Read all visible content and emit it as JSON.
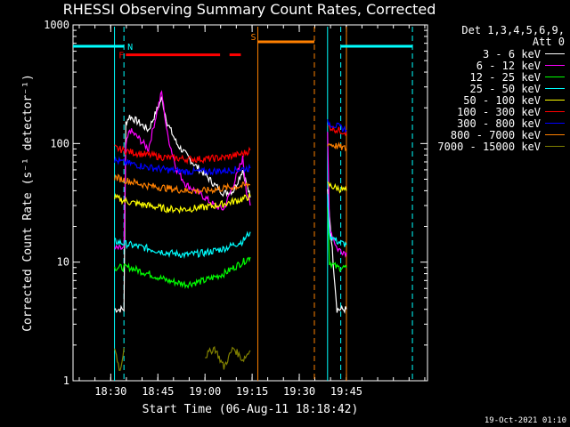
{
  "chart_data": {
    "type": "line",
    "title": "RHESSI Observing Summary Count Rates, Corrected",
    "xlabel": "Start Time (06-Aug-11 18:18:42)",
    "ylabel": "Corrected Count Rate (s⁻¹ detector⁻¹)",
    "y_scale": "log",
    "ylim": [
      1,
      1000
    ],
    "xlim_minutes": [
      18.3,
      20.18
    ],
    "x_ticks": [
      "18:30",
      "18:45",
      "19:00",
      "19:15",
      "19:30",
      "19:45"
    ],
    "y_ticks": [
      "1",
      "10",
      "100",
      "1000"
    ],
    "legend_header": [
      "Det 1,3,4,5,6,9,",
      "Att 0"
    ],
    "legend_position": "right",
    "series": [
      {
        "name": "3 - 6 keV",
        "color": "#ffffff",
        "segments": [
          [
            [
              18.52,
              4
            ],
            [
              18.57,
              4
            ],
            [
              18.58,
              150
            ],
            [
              18.6,
              170
            ],
            [
              18.65,
              150
            ],
            [
              18.7,
              130
            ],
            [
              18.75,
              200
            ],
            [
              18.77,
              240
            ],
            [
              18.8,
              150
            ],
            [
              18.85,
              100
            ],
            [
              18.9,
              80
            ],
            [
              18.95,
              65
            ],
            [
              19.0,
              55
            ],
            [
              19.05,
              45
            ],
            [
              19.1,
              38
            ],
            [
              19.15,
              40
            ],
            [
              19.2,
              60
            ],
            [
              19.24,
              35
            ]
          ],
          [
            [
              19.65,
              40
            ],
            [
              19.7,
              4
            ],
            [
              19.75,
              4
            ]
          ]
        ]
      },
      {
        "name": "6 - 12 keV",
        "color": "#ff00ff",
        "segments": [
          [
            [
              18.52,
              13
            ],
            [
              18.57,
              13
            ],
            [
              18.58,
              95
            ],
            [
              18.6,
              130
            ],
            [
              18.65,
              110
            ],
            [
              18.7,
              90
            ],
            [
              18.75,
              200
            ],
            [
              18.77,
              270
            ],
            [
              18.8,
              120
            ],
            [
              18.85,
              60
            ],
            [
              18.9,
              45
            ],
            [
              18.95,
              40
            ],
            [
              19.0,
              35
            ],
            [
              19.05,
              30
            ],
            [
              19.1,
              28
            ],
            [
              19.15,
              45
            ],
            [
              19.2,
              75
            ],
            [
              19.22,
              40
            ],
            [
              19.24,
              30
            ]
          ],
          [
            [
              19.65,
              120
            ],
            [
              19.66,
              20
            ],
            [
              19.7,
              13
            ],
            [
              19.75,
              12
            ]
          ]
        ]
      },
      {
        "name": "12 - 25 keV",
        "color": "#00ff00",
        "segments": [
          [
            [
              18.52,
              9
            ],
            [
              18.6,
              9
            ],
            [
              18.7,
              8
            ],
            [
              18.8,
              7
            ],
            [
              18.9,
              6.5
            ],
            [
              19.0,
              7
            ],
            [
              19.1,
              8
            ],
            [
              19.2,
              10
            ],
            [
              19.24,
              11
            ]
          ],
          [
            [
              19.65,
              30
            ],
            [
              19.66,
              10
            ],
            [
              19.7,
              9
            ],
            [
              19.75,
              9
            ]
          ]
        ]
      },
      {
        "name": "25 - 50 keV",
        "color": "#00ffff",
        "segments": [
          [
            [
              18.52,
              15
            ],
            [
              18.6,
              14
            ],
            [
              18.7,
              13
            ],
            [
              18.8,
              12
            ],
            [
              18.9,
              11.5
            ],
            [
              19.0,
              12
            ],
            [
              19.1,
              13
            ],
            [
              19.2,
              15
            ],
            [
              19.24,
              18
            ]
          ],
          [
            [
              19.65,
              35
            ],
            [
              19.66,
              17
            ],
            [
              19.7,
              15
            ],
            [
              19.75,
              14
            ]
          ]
        ]
      },
      {
        "name": "50 - 100 keV",
        "color": "#ffff00",
        "segments": [
          [
            [
              18.52,
              35
            ],
            [
              18.6,
              32
            ],
            [
              18.7,
              30
            ],
            [
              18.8,
              28
            ],
            [
              18.9,
              28
            ],
            [
              19.0,
              29
            ],
            [
              19.1,
              31
            ],
            [
              19.2,
              34
            ],
            [
              19.24,
              36
            ]
          ],
          [
            [
              19.65,
              45
            ],
            [
              19.7,
              42
            ],
            [
              19.75,
              40
            ]
          ]
        ]
      },
      {
        "name": "100 - 300 keV",
        "color": "#ff0000",
        "segments": [
          [
            [
              18.52,
              92
            ],
            [
              18.6,
              85
            ],
            [
              18.7,
              80
            ],
            [
              18.8,
              76
            ],
            [
              18.9,
              74
            ],
            [
              19.0,
              74
            ],
            [
              19.1,
              76
            ],
            [
              19.2,
              82
            ],
            [
              19.24,
              88
            ]
          ],
          [
            [
              19.65,
              140
            ],
            [
              19.7,
              130
            ],
            [
              19.75,
              125
            ]
          ]
        ]
      },
      {
        "name": "300 - 800 keV",
        "color": "#0000ff",
        "segments": [
          [
            [
              18.52,
              72
            ],
            [
              18.6,
              68
            ],
            [
              18.7,
              63
            ],
            [
              18.8,
              60
            ],
            [
              18.9,
              58
            ],
            [
              19.0,
              58
            ],
            [
              19.1,
              59
            ],
            [
              19.2,
              61
            ],
            [
              19.24,
              62
            ]
          ],
          [
            [
              19.65,
              150
            ],
            [
              19.7,
              140
            ],
            [
              19.75,
              130
            ]
          ]
        ]
      },
      {
        "name": "800 - 7000 keV",
        "color": "#ff8000",
        "segments": [
          [
            [
              18.52,
              52
            ],
            [
              18.6,
              48
            ],
            [
              18.7,
              44
            ],
            [
              18.8,
              42
            ],
            [
              18.9,
              40
            ],
            [
              19.0,
              40
            ],
            [
              19.1,
              42
            ],
            [
              19.2,
              44
            ],
            [
              19.24,
              45
            ]
          ],
          [
            [
              19.65,
              100
            ],
            [
              19.7,
              95
            ],
            [
              19.75,
              90
            ]
          ]
        ]
      },
      {
        "name": "7000 - 15000 keV",
        "color": "#808000",
        "segments": [
          [
            [
              18.52,
              1.9
            ],
            [
              18.55,
              1.2
            ],
            [
              18.57,
              1.9
            ]
          ],
          [
            [
              19.0,
              1.6
            ],
            [
              19.05,
              1.9
            ],
            [
              19.1,
              1.3
            ],
            [
              19.15,
              1.9
            ],
            [
              19.2,
              1.5
            ],
            [
              19.24,
              1.8
            ]
          ]
        ]
      }
    ],
    "state_bars": [
      {
        "label": "N",
        "color": "#00ffff",
        "y": 660,
        "segments": [
          [
            18.3,
            18.57
          ],
          [
            19.72,
            20.1
          ]
        ]
      },
      {
        "label": "F",
        "color": "#ff0000",
        "y": 560,
        "segments": [
          [
            18.58,
            19.08
          ],
          [
            19.13,
            19.19
          ]
        ]
      },
      {
        "label": "S",
        "color": "#ff8000",
        "y": 720,
        "segments": [
          [
            19.28,
            19.58
          ]
        ]
      }
    ],
    "vlines": [
      {
        "x": 18.52,
        "color": "#00ffff",
        "dash": false
      },
      {
        "x": 18.57,
        "color": "#00ffff",
        "dash": true
      },
      {
        "x": 19.28,
        "color": "#ff8000",
        "dash": false
      },
      {
        "x": 19.58,
        "color": "#ff8000",
        "dash": true
      },
      {
        "x": 19.65,
        "color": "#00ffff",
        "dash": false
      },
      {
        "x": 19.72,
        "color": "#00ffff",
        "dash": true
      },
      {
        "x": 19.75,
        "color": "#ff8000",
        "dash": false
      },
      {
        "x": 20.1,
        "color": "#00ffff",
        "dash": true
      }
    ]
  },
  "footer": "19-Oct-2021 01:10"
}
